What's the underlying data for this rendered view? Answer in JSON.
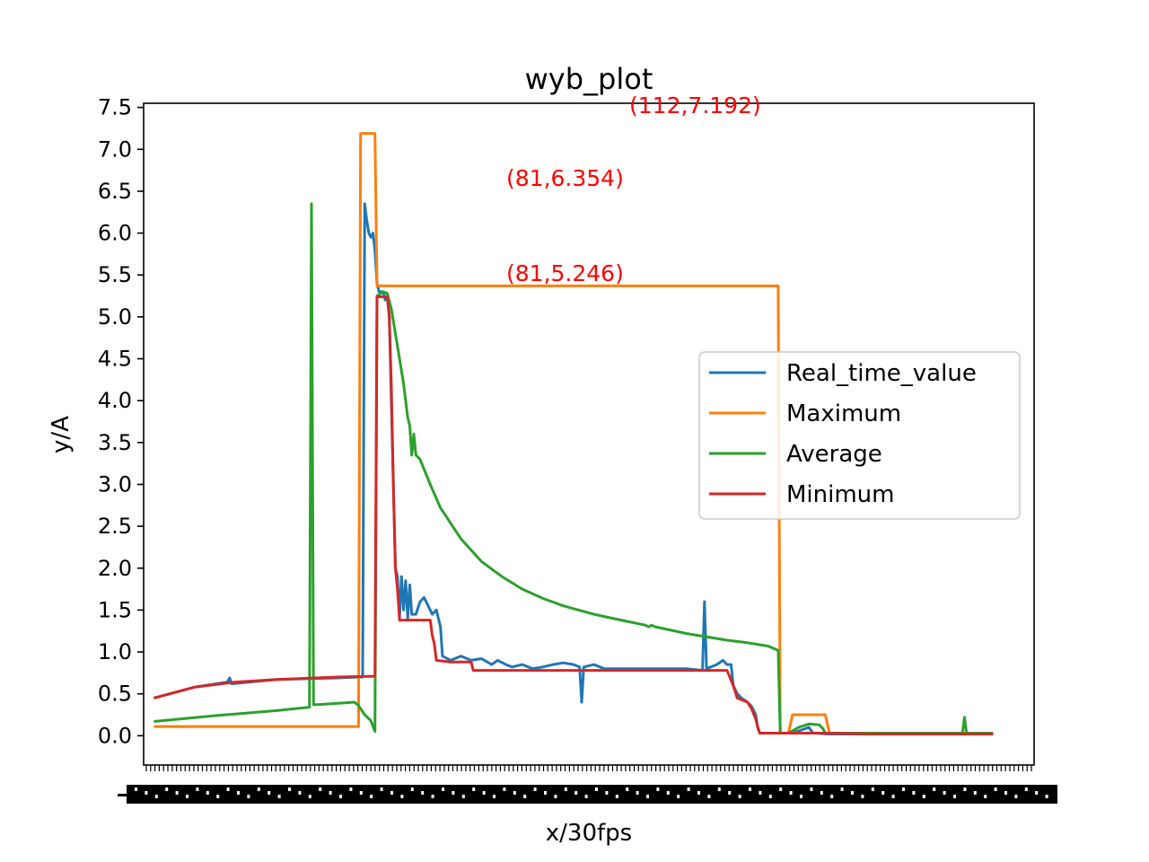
{
  "chart_data": {
    "type": "line",
    "title": "wyb_plot",
    "xlabel": "x/30fps",
    "ylabel": "y/A",
    "ylim": [
      -0.35,
      7.55
    ],
    "xlim": [
      -5,
      430
    ],
    "yticks": [
      "0.0",
      "0.5",
      "1.0",
      "1.5",
      "2.0",
      "2.5",
      "3.0",
      "3.5",
      "4.0",
      "4.5",
      "5.0",
      "5.5",
      "6.0",
      "6.5",
      "7.0",
      "7.5"
    ],
    "grid": false,
    "legend_position": "center-right",
    "annotations": [
      {
        "text": "(112,7.192)",
        "x": 112,
        "y": 7.192
      },
      {
        "text": "(81,6.354)",
        "x": 81,
        "y": 6.354
      },
      {
        "text": "(81,5.246)",
        "x": 81,
        "y": 5.246
      }
    ],
    "annotation_color": "#ff0000",
    "series": [
      {
        "name": "Real_time_value",
        "color": "#1f77b4",
        "points": [
          [
            0,
            0.45
          ],
          [
            20,
            0.58
          ],
          [
            36,
            0.64
          ],
          [
            37,
            0.69
          ],
          [
            38,
            0.62
          ],
          [
            60,
            0.67
          ],
          [
            90,
            0.69
          ],
          [
            100,
            0.7
          ],
          [
            102,
            0.7
          ],
          [
            103,
            6.35
          ],
          [
            104,
            6.15
          ],
          [
            105,
            6.0
          ],
          [
            106,
            5.95
          ],
          [
            107,
            6.0
          ],
          [
            108,
            5.8
          ],
          [
            109,
            5.4
          ],
          [
            110,
            5.3
          ],
          [
            111,
            5.3
          ],
          [
            112,
            5.3
          ],
          [
            113,
            5.2
          ],
          [
            114,
            5.25
          ],
          [
            115,
            5.0
          ],
          [
            116,
            4.0
          ],
          [
            117,
            3.0
          ],
          [
            118,
            2.0
          ],
          [
            119,
            1.9
          ],
          [
            120,
            1.4
          ],
          [
            121,
            1.9
          ],
          [
            122,
            1.5
          ],
          [
            123,
            1.85
          ],
          [
            124,
            1.4
          ],
          [
            125,
            1.8
          ],
          [
            126,
            1.45
          ],
          [
            128,
            1.45
          ],
          [
            130,
            1.6
          ],
          [
            132,
            1.65
          ],
          [
            134,
            1.55
          ],
          [
            136,
            1.45
          ],
          [
            138,
            1.5
          ],
          [
            140,
            1.3
          ],
          [
            141,
            0.95
          ],
          [
            145,
            0.9
          ],
          [
            150,
            0.95
          ],
          [
            155,
            0.9
          ],
          [
            160,
            0.92
          ],
          [
            165,
            0.85
          ],
          [
            168,
            0.9
          ],
          [
            172,
            0.85
          ],
          [
            175,
            0.82
          ],
          [
            180,
            0.85
          ],
          [
            185,
            0.8
          ],
          [
            190,
            0.82
          ],
          [
            195,
            0.85
          ],
          [
            200,
            0.87
          ],
          [
            205,
            0.85
          ],
          [
            208,
            0.82
          ],
          [
            209,
            0.4
          ],
          [
            210,
            0.82
          ],
          [
            215,
            0.85
          ],
          [
            220,
            0.8
          ],
          [
            230,
            0.8
          ],
          [
            240,
            0.8
          ],
          [
            250,
            0.8
          ],
          [
            260,
            0.8
          ],
          [
            268,
            0.78
          ],
          [
            269,
            1.6
          ],
          [
            270,
            0.8
          ],
          [
            275,
            0.85
          ],
          [
            278,
            0.9
          ],
          [
            280,
            0.85
          ],
          [
            282,
            0.85
          ],
          [
            283,
            0.6
          ],
          [
            285,
            0.5
          ],
          [
            287,
            0.45
          ],
          [
            290,
            0.4
          ],
          [
            292,
            0.35
          ],
          [
            294,
            0.25
          ],
          [
            295,
            0.1
          ],
          [
            296,
            0.03
          ],
          [
            300,
            0.03
          ],
          [
            312,
            0.03
          ],
          [
            320,
            0.1
          ],
          [
            322,
            0.03
          ],
          [
            330,
            0.02
          ],
          [
            360,
            0.02
          ],
          [
            400,
            0.02
          ],
          [
            410,
            0.02
          ]
        ]
      },
      {
        "name": "Maximum",
        "color": "#ff7f0e",
        "points": [
          [
            0,
            0.11
          ],
          [
            100,
            0.11
          ],
          [
            101,
            7.19
          ],
          [
            108,
            7.19
          ],
          [
            109,
            5.37
          ],
          [
            305,
            5.37
          ],
          [
            306,
            0.03
          ],
          [
            310,
            0.03
          ],
          [
            312,
            0.25
          ],
          [
            328,
            0.25
          ],
          [
            330,
            0.03
          ],
          [
            410,
            0.03
          ]
        ]
      },
      {
        "name": "Average",
        "color": "#2ca02c",
        "points": [
          [
            0,
            0.17
          ],
          [
            30,
            0.24
          ],
          [
            60,
            0.3
          ],
          [
            76,
            0.34
          ],
          [
            77,
            6.35
          ],
          [
            78,
            0.37
          ],
          [
            80,
            0.37
          ],
          [
            98,
            0.4
          ],
          [
            100,
            0.36
          ],
          [
            103,
            0.25
          ],
          [
            106,
            0.18
          ],
          [
            108,
            0.05
          ],
          [
            109,
            5.25
          ],
          [
            112,
            5.3
          ],
          [
            114,
            5.28
          ],
          [
            116,
            5.1
          ],
          [
            118,
            4.8
          ],
          [
            120,
            4.5
          ],
          [
            122,
            4.2
          ],
          [
            124,
            3.8
          ],
          [
            125,
            3.7
          ],
          [
            126,
            3.35
          ],
          [
            127,
            3.6
          ],
          [
            128,
            3.35
          ],
          [
            130,
            3.3
          ],
          [
            135,
            3.0
          ],
          [
            140,
            2.72
          ],
          [
            150,
            2.35
          ],
          [
            160,
            2.08
          ],
          [
            170,
            1.9
          ],
          [
            180,
            1.75
          ],
          [
            190,
            1.64
          ],
          [
            200,
            1.55
          ],
          [
            215,
            1.45
          ],
          [
            230,
            1.37
          ],
          [
            240,
            1.32
          ],
          [
            242,
            1.3
          ],
          [
            243,
            1.32
          ],
          [
            245,
            1.3
          ],
          [
            260,
            1.22
          ],
          [
            280,
            1.14
          ],
          [
            290,
            1.11
          ],
          [
            300,
            1.07
          ],
          [
            305,
            1.02
          ],
          [
            306,
            0.03
          ],
          [
            310,
            0.03
          ],
          [
            315,
            0.1
          ],
          [
            320,
            0.14
          ],
          [
            325,
            0.13
          ],
          [
            327,
            0.08
          ],
          [
            328,
            0.03
          ],
          [
            360,
            0.03
          ],
          [
            395,
            0.03
          ],
          [
            396,
            0.22
          ],
          [
            397,
            0.03
          ],
          [
            410,
            0.03
          ]
        ]
      },
      {
        "name": "Minimum",
        "color": "#d62728",
        "points": [
          [
            0,
            0.45
          ],
          [
            20,
            0.58
          ],
          [
            40,
            0.64
          ],
          [
            60,
            0.67
          ],
          [
            90,
            0.7
          ],
          [
            108,
            0.71
          ],
          [
            109,
            5.24
          ],
          [
            114,
            5.24
          ],
          [
            115,
            5.0
          ],
          [
            116,
            4.2
          ],
          [
            117,
            3.0
          ],
          [
            118,
            2.0
          ],
          [
            119,
            1.75
          ],
          [
            120,
            1.38
          ],
          [
            135,
            1.38
          ],
          [
            136,
            1.2
          ],
          [
            137,
            1.1
          ],
          [
            138,
            0.9
          ],
          [
            145,
            0.88
          ],
          [
            155,
            0.88
          ],
          [
            156,
            0.78
          ],
          [
            200,
            0.78
          ],
          [
            250,
            0.78
          ],
          [
            280,
            0.78
          ],
          [
            281,
            0.72
          ],
          [
            283,
            0.6
          ],
          [
            285,
            0.45
          ],
          [
            290,
            0.4
          ],
          [
            292,
            0.32
          ],
          [
            294,
            0.2
          ],
          [
            295,
            0.1
          ],
          [
            296,
            0.03
          ],
          [
            330,
            0.03
          ],
          [
            350,
            0.02
          ],
          [
            410,
            0.02
          ]
        ]
      }
    ]
  }
}
